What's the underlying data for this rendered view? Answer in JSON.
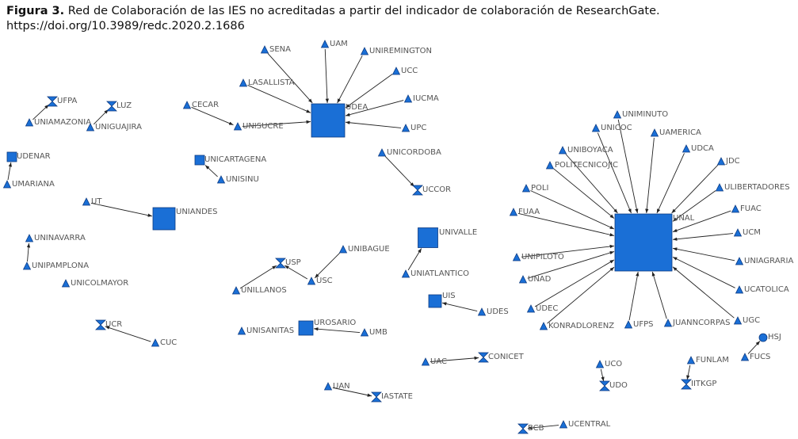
{
  "caption": {
    "label": "Figura 3.",
    "text": "Red de Colaboración de las IES no acreditadas a partir del indicador de colaboración de ResearchGate.",
    "doi": "https://doi.org/10.3989/redc.2020.2.1686"
  },
  "colors": {
    "node": "#1a6fd6",
    "node_stroke": "#0d3a80",
    "edge": "#222222",
    "label": "#555555"
  },
  "network": {
    "nodes": [
      {
        "id": "SENA",
        "label": "SENA",
        "shape": "triangle"
      },
      {
        "id": "UAM",
        "label": "UAM",
        "shape": "triangle"
      },
      {
        "id": "UNIREMINGTON",
        "label": "UNIREMINGTON",
        "shape": "triangle"
      },
      {
        "id": "UCC",
        "label": "UCC",
        "shape": "triangle"
      },
      {
        "id": "LASALLISTA",
        "label": "LASALLISTA",
        "shape": "triangle"
      },
      {
        "id": "UDEA",
        "label": "UDEA",
        "shape": "square"
      },
      {
        "id": "IUCMA",
        "label": "IUCMA",
        "shape": "triangle"
      },
      {
        "id": "UPC",
        "label": "UPC",
        "shape": "triangle"
      },
      {
        "id": "CECAR",
        "label": "CECAR",
        "shape": "triangle"
      },
      {
        "id": "UNISUCRE",
        "label": "UNISUCRE",
        "shape": "triangle"
      },
      {
        "id": "UFPA",
        "label": "UFPA",
        "shape": "hourglass"
      },
      {
        "id": "UNIAMAZONIA",
        "label": "UNIAMAZONIA",
        "shape": "triangle"
      },
      {
        "id": "LUZ",
        "label": "LUZ",
        "shape": "hourglass"
      },
      {
        "id": "UNIGUAJIRA",
        "label": "UNIGUAJIRA",
        "shape": "triangle"
      },
      {
        "id": "UDENAR",
        "label": "UDENAR",
        "shape": "square"
      },
      {
        "id": "UMARIANA",
        "label": "UMARIANA",
        "shape": "triangle"
      },
      {
        "id": "UNICARTAGENA",
        "label": "UNICARTAGENA",
        "shape": "square"
      },
      {
        "id": "UNISINU",
        "label": "UNISINU",
        "shape": "triangle"
      },
      {
        "id": "UNICORDOBA",
        "label": "UNICORDOBA",
        "shape": "triangle"
      },
      {
        "id": "UCCOR",
        "label": "UCCOR",
        "shape": "hourglass"
      },
      {
        "id": "UT",
        "label": "UT",
        "shape": "triangle"
      },
      {
        "id": "UNIANDES",
        "label": "UNIANDES",
        "shape": "square"
      },
      {
        "id": "UNINAVARRA",
        "label": "UNINAVARRA",
        "shape": "triangle"
      },
      {
        "id": "UNIPAMPLONA",
        "label": "UNIPAMPLONA",
        "shape": "triangle"
      },
      {
        "id": "UNICOLMAYOR",
        "label": "UNICOLMAYOR",
        "shape": "triangle"
      },
      {
        "id": "UNIVALLE",
        "label": "UNIVALLE",
        "shape": "square"
      },
      {
        "id": "UNIATLANTICO",
        "label": "UNIATLANTICO",
        "shape": "triangle"
      },
      {
        "id": "UNIBAGUE",
        "label": "UNIBAGUE",
        "shape": "triangle"
      },
      {
        "id": "USP",
        "label": "USP",
        "shape": "hourglass"
      },
      {
        "id": "USC",
        "label": "USC",
        "shape": "triangle"
      },
      {
        "id": "UNILLANOS",
        "label": "UNILLANOS",
        "shape": "triangle"
      },
      {
        "id": "UIS",
        "label": "UIS",
        "shape": "square"
      },
      {
        "id": "UDES",
        "label": "UDES",
        "shape": "triangle"
      },
      {
        "id": "UCR",
        "label": "UCR",
        "shape": "hourglass"
      },
      {
        "id": "CUC",
        "label": "CUC",
        "shape": "triangle"
      },
      {
        "id": "UNISANITAS",
        "label": "UNISANITAS",
        "shape": "triangle"
      },
      {
        "id": "UROSARIO",
        "label": "UROSARIO",
        "shape": "square"
      },
      {
        "id": "UMB",
        "label": "UMB",
        "shape": "triangle"
      },
      {
        "id": "UAC",
        "label": "UAC",
        "shape": "triangle"
      },
      {
        "id": "CONICET",
        "label": "CONICET",
        "shape": "hourglass"
      },
      {
        "id": "UAN",
        "label": "UAN",
        "shape": "triangle"
      },
      {
        "id": "IASTATE",
        "label": "IASTATE",
        "shape": "hourglass"
      },
      {
        "id": "BCB",
        "label": "BCB",
        "shape": "hourglass"
      },
      {
        "id": "UCENTRAL",
        "label": "UCENTRAL",
        "shape": "triangle"
      },
      {
        "id": "UNAL",
        "label": "UNAL",
        "shape": "square"
      },
      {
        "id": "UNIMINUTO",
        "label": "UNIMINUTO",
        "shape": "triangle"
      },
      {
        "id": "UNICOC",
        "label": "UNICOC",
        "shape": "triangle"
      },
      {
        "id": "UAMERICA",
        "label": "UAMERICA",
        "shape": "triangle"
      },
      {
        "id": "UNIBOYACA",
        "label": "UNIBOYACA",
        "shape": "triangle"
      },
      {
        "id": "UDCA",
        "label": "UDCA",
        "shape": "triangle"
      },
      {
        "id": "POLITECNICOJIC",
        "label": "POLITECNICOJIC",
        "shape": "triangle"
      },
      {
        "id": "JDC",
        "label": "JDC",
        "shape": "triangle"
      },
      {
        "id": "POLI",
        "label": "POLI",
        "shape": "triangle"
      },
      {
        "id": "ULIBERTADORES",
        "label": "ULIBERTADORES",
        "shape": "triangle"
      },
      {
        "id": "FUAA",
        "label": "FUAA",
        "shape": "triangle"
      },
      {
        "id": "FUAC",
        "label": "FUAC",
        "shape": "triangle"
      },
      {
        "id": "UCM",
        "label": "UCM",
        "shape": "triangle"
      },
      {
        "id": "UNIPILOTO",
        "label": "UNIPILOTO",
        "shape": "triangle"
      },
      {
        "id": "UNIAGRARIA",
        "label": "UNIAGRARIA",
        "shape": "triangle"
      },
      {
        "id": "UNAD",
        "label": "UNAD",
        "shape": "triangle"
      },
      {
        "id": "UCATOLICA",
        "label": "UCATOLICA",
        "shape": "triangle"
      },
      {
        "id": "UDEC",
        "label": "UDEC",
        "shape": "triangle"
      },
      {
        "id": "KONRADLORENZ",
        "label": "KONRADLORENZ",
        "shape": "triangle"
      },
      {
        "id": "UFPS",
        "label": "UFPS",
        "shape": "triangle"
      },
      {
        "id": "JUANNCORPAS",
        "label": "JUANNCORPAS",
        "shape": "triangle"
      },
      {
        "id": "UGC",
        "label": "UGC",
        "shape": "triangle"
      },
      {
        "id": "HSJ",
        "label": "HSJ",
        "shape": "circle"
      },
      {
        "id": "FUCS",
        "label": "FUCS",
        "shape": "triangle"
      },
      {
        "id": "FUNLAM",
        "label": "FUNLAM",
        "shape": "triangle"
      },
      {
        "id": "IITKGP",
        "label": "IITKGP",
        "shape": "hourglass"
      },
      {
        "id": "UCO",
        "label": "UCO",
        "shape": "triangle"
      },
      {
        "id": "UDO",
        "label": "UDO",
        "shape": "hourglass"
      }
    ],
    "edges": [
      [
        "SENA",
        "UDEA"
      ],
      [
        "UAM",
        "UDEA"
      ],
      [
        "UNIREMINGTON",
        "UDEA"
      ],
      [
        "UCC",
        "UDEA"
      ],
      [
        "LASALLISTA",
        "UDEA"
      ],
      [
        "IUCMA",
        "UDEA"
      ],
      [
        "UPC",
        "UDEA"
      ],
      [
        "UNISUCRE",
        "UDEA"
      ],
      [
        "CECAR",
        "UNISUCRE"
      ],
      [
        "UNIAMAZONIA",
        "UFPA"
      ],
      [
        "UNIGUAJIRA",
        "LUZ"
      ],
      [
        "UMARIANA",
        "UDENAR"
      ],
      [
        "UNISINU",
        "UNICARTAGENA"
      ],
      [
        "UNICORDOBA",
        "UCCOR"
      ],
      [
        "UT",
        "UNIANDES"
      ],
      [
        "UNIPAMPLONA",
        "UNINAVARRA"
      ],
      [
        "UNIATLANTICO",
        "UNIVALLE"
      ],
      [
        "UNIBAGUE",
        "USC"
      ],
      [
        "USC",
        "USP"
      ],
      [
        "UNILLANOS",
        "USP"
      ],
      [
        "UDES",
        "UIS"
      ],
      [
        "CUC",
        "UCR"
      ],
      [
        "UMB",
        "UROSARIO"
      ],
      [
        "UAC",
        "CONICET"
      ],
      [
        "UAN",
        "IASTATE"
      ],
      [
        "UCENTRAL",
        "BCB"
      ],
      [
        "UNIMINUTO",
        "UNAL"
      ],
      [
        "UNICOC",
        "UNAL"
      ],
      [
        "UAMERICA",
        "UNAL"
      ],
      [
        "UNIBOYACA",
        "UNAL"
      ],
      [
        "UDCA",
        "UNAL"
      ],
      [
        "POLITECNICOJIC",
        "UNAL"
      ],
      [
        "JDC",
        "UNAL"
      ],
      [
        "POLI",
        "UNAL"
      ],
      [
        "ULIBERTADORES",
        "UNAL"
      ],
      [
        "FUAA",
        "UNAL"
      ],
      [
        "FUAC",
        "UNAL"
      ],
      [
        "UCM",
        "UNAL"
      ],
      [
        "UNIPILOTO",
        "UNAL"
      ],
      [
        "UNIAGRARIA",
        "UNAL"
      ],
      [
        "UNAD",
        "UNAL"
      ],
      [
        "UCATOLICA",
        "UNAL"
      ],
      [
        "UDEC",
        "UNAL"
      ],
      [
        "KONRADLORENZ",
        "UNAL"
      ],
      [
        "UFPS",
        "UNAL"
      ],
      [
        "JUANNCORPAS",
        "UNAL"
      ],
      [
        "UGC",
        "UNAL"
      ],
      [
        "FUCS",
        "HSJ"
      ],
      [
        "FUNLAM",
        "IITKGP"
      ],
      [
        "UCO",
        "UDO"
      ]
    ]
  }
}
